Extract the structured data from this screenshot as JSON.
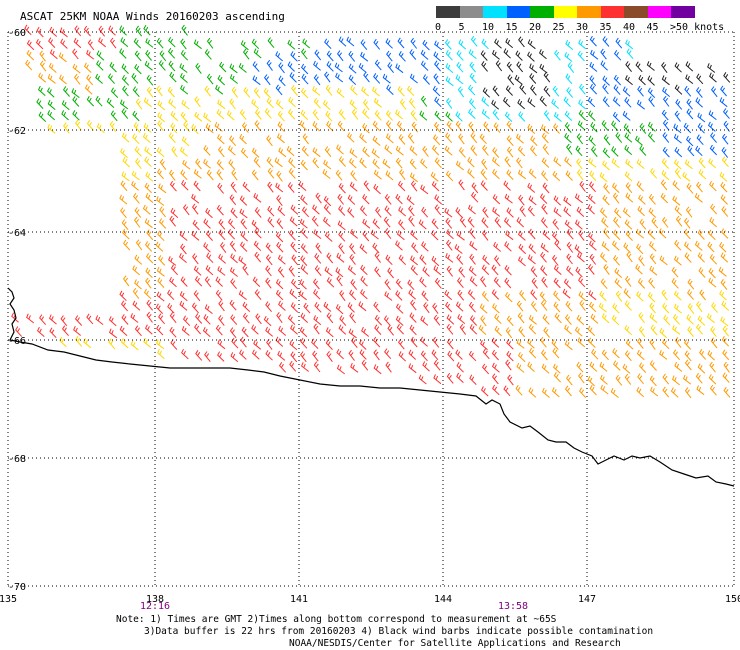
{
  "title": "ASCAT 25KM NOAA Winds 20160203 ascending",
  "color_scale": {
    "labels": [
      "0",
      "5",
      "10",
      "15",
      "20",
      "25",
      "30",
      "35",
      "40",
      "45",
      ">50 knots"
    ],
    "colors": [
      "#3c3c3c",
      "#8c8c8c",
      "#00e0ff",
      "#0060ff",
      "#00b000",
      "#ffff00",
      "#ff9900",
      "#ff3030",
      "#8b4a2a",
      "#ff00ff",
      "#7000a0"
    ]
  },
  "map": {
    "lat_labels": [
      "-60",
      "-62",
      "-64",
      "-66",
      "-68",
      "-70"
    ],
    "lon_labels": [
      "135",
      "138",
      "141",
      "144",
      "147",
      "150"
    ],
    "time_labels": [
      "12:16",
      "13:58"
    ]
  },
  "notes": [
    "Note: 1) Times are GMT 2)Times along bottom correspond to measurement at ~65S",
    "3)Data buffer is 22 hrs from 20160203 4) Black wind barbs indicate possible contamination",
    "NOAA/NESDIS/Center for Satellite Applications and Research"
  ],
  "icons": {
    "wind_barb": "wind-barb-icon",
    "coastline": "coastline"
  }
}
